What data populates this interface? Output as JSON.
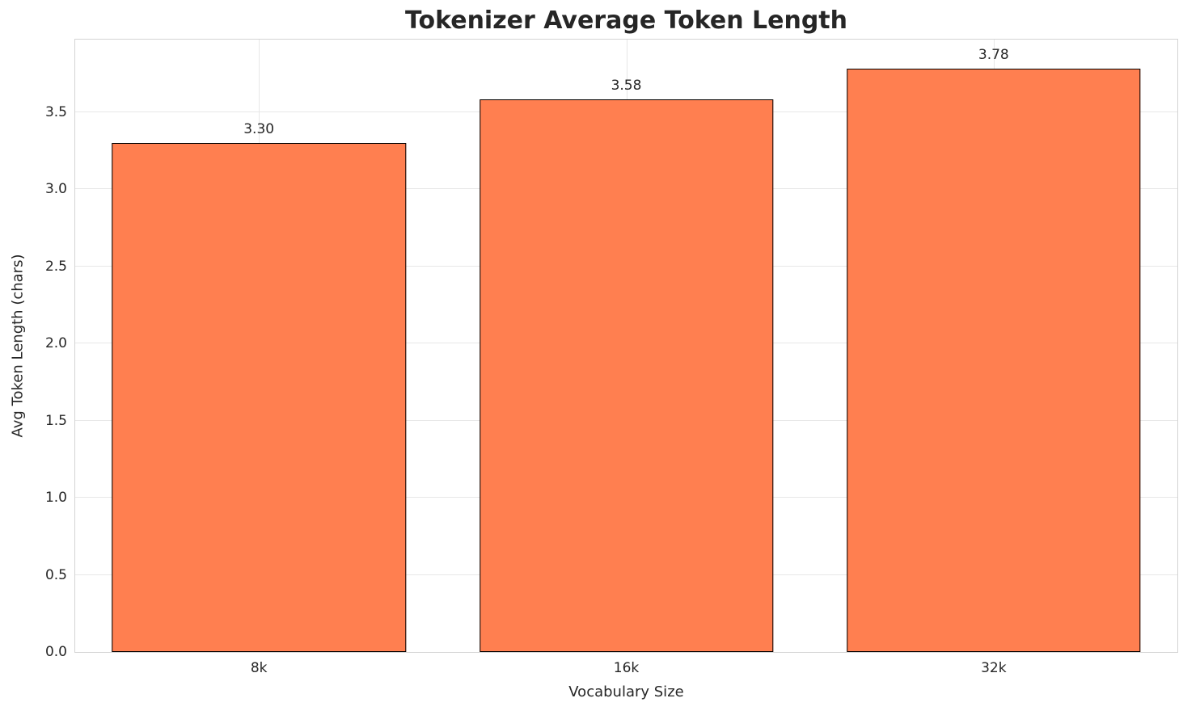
{
  "chart_data": {
    "type": "bar",
    "title": "Tokenizer Average Token Length",
    "xlabel": "Vocabulary Size",
    "ylabel": "Avg Token Length (chars)",
    "categories": [
      "8k",
      "16k",
      "32k"
    ],
    "values": [
      3.3,
      3.58,
      3.78
    ],
    "value_labels": [
      "3.30",
      "3.58",
      "3.78"
    ],
    "yticks": [
      0.0,
      0.5,
      1.0,
      1.5,
      2.0,
      2.5,
      3.0,
      3.5
    ],
    "ytick_labels": [
      "0.0",
      "0.5",
      "1.0",
      "1.5",
      "2.0",
      "2.5",
      "3.0",
      "3.5"
    ],
    "ylim": [
      0,
      3.97
    ],
    "grid": true,
    "legend": "none",
    "bar_width_fraction": 0.8,
    "bar_color": "#FF7F50",
    "bar_edge_color": "#000000",
    "grid_color": "#e7e7e7",
    "background_color": "#ffffff",
    "text_color": "#262626"
  }
}
